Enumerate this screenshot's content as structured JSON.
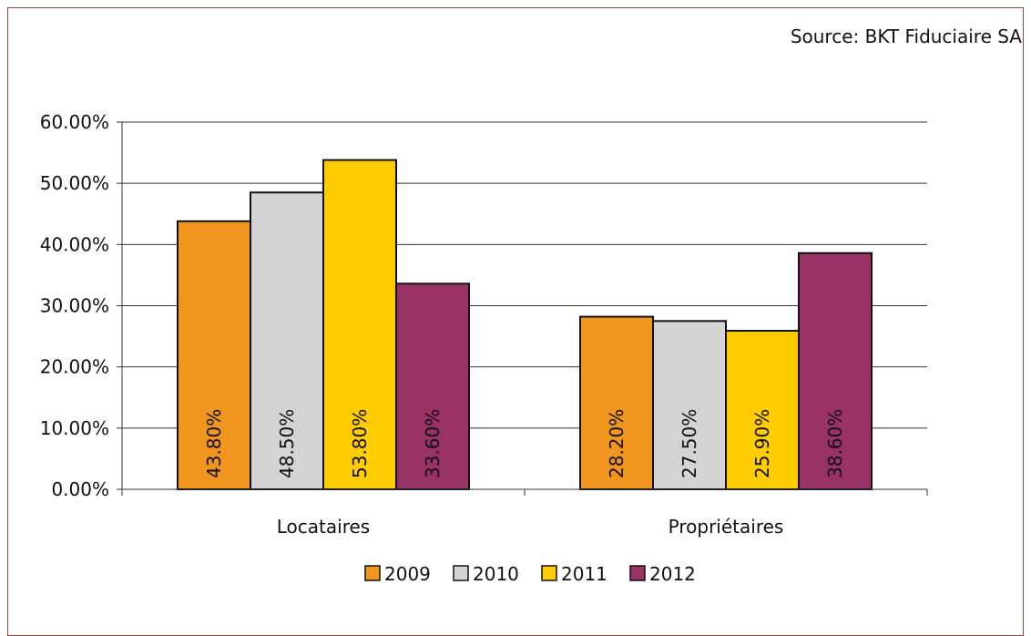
{
  "source_text": "Source: BKT Fiduciaire SA",
  "chart_data": {
    "type": "bar",
    "categories": [
      "Locataires",
      "Propriétaires"
    ],
    "series": [
      {
        "name": "2009",
        "color": "#f0961e",
        "values": [
          43.8,
          28.2
        ],
        "labels": [
          "43.80%",
          "28.20%"
        ]
      },
      {
        "name": "2010",
        "color": "#d4d4d4",
        "values": [
          48.5,
          27.5
        ],
        "labels": [
          "48.50%",
          "27.50%"
        ]
      },
      {
        "name": "2011",
        "color": "#ffcc00",
        "values": [
          53.8,
          25.9
        ],
        "labels": [
          "53.80%",
          "25.90%"
        ]
      },
      {
        "name": "2012",
        "color": "#993366",
        "values": [
          33.6,
          38.6
        ],
        "labels": [
          "33.60%",
          "38.60%"
        ]
      }
    ],
    "ylim": [
      0,
      60
    ],
    "yticks": [
      0,
      10,
      20,
      30,
      40,
      50,
      60
    ],
    "ytick_labels": [
      "0.00%",
      "10.00%",
      "20.00%",
      "30.00%",
      "40.00%",
      "50.00%",
      "60.00%"
    ],
    "grid": true,
    "legend_position": "bottom",
    "title": "",
    "xlabel": "",
    "ylabel": ""
  }
}
